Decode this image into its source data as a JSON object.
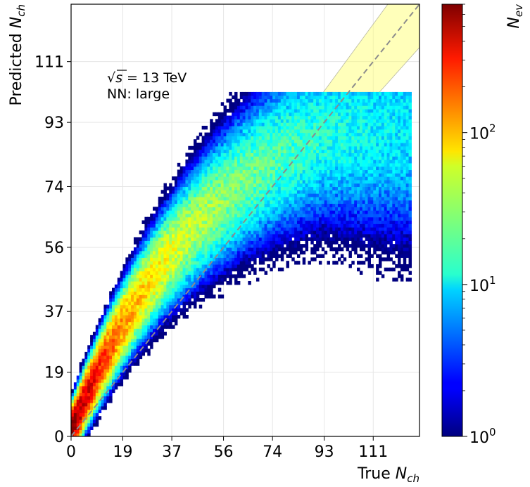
{
  "chart_data": {
    "type": "heatmap",
    "xlabel_main": "True ",
    "xlabel_sym": "N",
    "xlabel_sub": "ch",
    "ylabel_main": "Predicted ",
    "ylabel_sym": "N",
    "ylabel_sub": "ch",
    "xlim": [
      0,
      128
    ],
    "ylim": [
      0,
      128
    ],
    "xticks": [
      0,
      19,
      37,
      56,
      74,
      93,
      111
    ],
    "yticks": [
      0,
      19,
      37,
      56,
      74,
      93,
      111
    ],
    "grid": true,
    "diagonal": {
      "style": "dashed",
      "color": "#8c8c8c"
    },
    "band": {
      "color": "#ffff66",
      "opacity": 0.45,
      "x_start": 82
    },
    "annotation": {
      "line1_rhs": " = 13 TeV",
      "line1_sym": "s",
      "line2": "NN: large"
    },
    "colorbar": {
      "label_sym": "N",
      "label_sub": "ev",
      "scale": "log",
      "colormap": "jet",
      "range": [
        1,
        700
      ],
      "ticks": [
        {
          "value": 1,
          "base": "10",
          "exp": "0"
        },
        {
          "value": 10,
          "base": "10",
          "exp": "1"
        },
        {
          "value": 100,
          "base": "10",
          "exp": "2"
        }
      ]
    },
    "density": {
      "description_points": [
        {
          "x": 5,
          "y": 8,
          "count": 600
        },
        {
          "x": 19,
          "y": 25,
          "count": 150
        },
        {
          "x": 37,
          "y": 42,
          "count": 60
        },
        {
          "x": 56,
          "y": 60,
          "count": 35
        },
        {
          "x": 74,
          "y": 74,
          "count": 25
        },
        {
          "x": 93,
          "y": 85,
          "count": 20
        },
        {
          "x": 111,
          "y": 88,
          "count": 12
        },
        {
          "x": 120,
          "y": 89,
          "count": 8
        }
      ]
    }
  }
}
